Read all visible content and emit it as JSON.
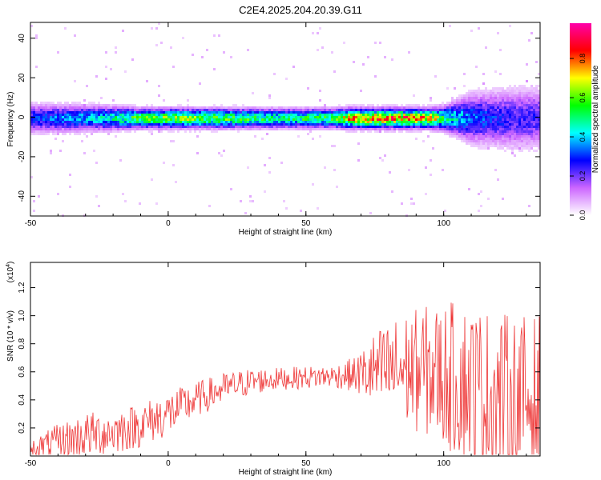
{
  "title": "C2E4.2025.204.20.39.G11",
  "chart_data": [
    {
      "type": "heatmap",
      "xlabel": "Height of straight line (km)",
      "ylabel": "Frequency (Hz)",
      "xlim": [
        -50,
        135
      ],
      "ylim": [
        -50,
        48
      ],
      "xticks": [
        -50,
        0,
        50,
        100
      ],
      "yticks": [
        -40,
        -20,
        0,
        20,
        40
      ],
      "colorbar": {
        "label": "Normalized spectral amplitude",
        "range": [
          0,
          0.98
        ],
        "ticks": [
          "0.0",
          "0.2",
          "0.4",
          "0.6",
          "0.8"
        ],
        "colors": [
          "#ffffff",
          "#cc66ff",
          "#0000ff",
          "#00ffff",
          "#00ff00",
          "#ffff00",
          "#ff0000",
          "#ff00aa"
        ]
      },
      "ridge": {
        "description_points_x": [
          -50,
          -25,
          -10,
          0,
          20,
          40,
          60,
          67,
          75,
          85,
          95,
          100,
          110,
          125,
          135
        ],
        "center_frequency_hz": [
          0,
          0,
          0,
          0,
          0,
          0,
          0,
          0,
          0,
          0,
          0,
          0,
          0,
          0,
          0
        ],
        "peak_amplitude": [
          0.35,
          0.5,
          0.7,
          0.75,
          0.7,
          0.6,
          0.65,
          0.95,
          0.95,
          0.95,
          0.9,
          0.6,
          0.4,
          0.3,
          0.3
        ],
        "spread_hz": [
          6,
          5,
          4,
          4,
          4,
          4,
          4,
          4,
          4,
          4,
          4,
          5,
          10,
          12,
          12
        ]
      }
    },
    {
      "type": "line",
      "xlabel": "Height of straight line (km)",
      "ylabel": "SNR (10 * v/v)",
      "y_multiplier": "(x10",
      "y_multiplier_exp": "4",
      "y_multiplier_close": ")",
      "xlim": [
        -50,
        135
      ],
      "ylim": [
        0,
        1.38
      ],
      "xticks": [
        -50,
        0,
        50,
        100
      ],
      "yticks": [
        "0.2",
        "0.4",
        "0.6",
        "0.8",
        "1.0",
        "1.2"
      ],
      "series": [
        {
          "color": "#ee3333",
          "x": [
            -50,
            -40,
            -30,
            -20,
            -10,
            0,
            10,
            20,
            30,
            40,
            50,
            60,
            68,
            75,
            85,
            95,
            105,
            115,
            125,
            135
          ],
          "trend": [
            0.05,
            0.1,
            0.15,
            0.17,
            0.22,
            0.3,
            0.4,
            0.48,
            0.53,
            0.55,
            0.56,
            0.57,
            0.58,
            0.6,
            0.62,
            0.6,
            0.55,
            0.45,
            0.4,
            0.4
          ],
          "spread": [
            0.04,
            0.08,
            0.1,
            0.1,
            0.1,
            0.1,
            0.08,
            0.07,
            0.06,
            0.05,
            0.05,
            0.05,
            0.08,
            0.18,
            0.25,
            0.3,
            0.35,
            0.38,
            0.38,
            0.38
          ]
        }
      ]
    }
  ]
}
